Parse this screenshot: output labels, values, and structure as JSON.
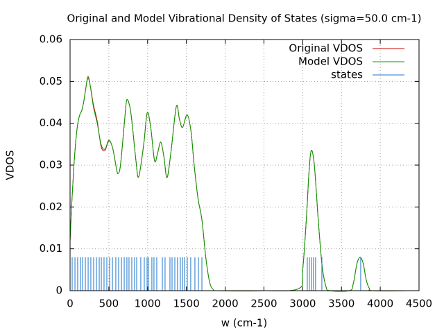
{
  "chart_data": {
    "type": "line",
    "title": "Original and Model Vibrational Density of States (sigma=50.0 cm-1)",
    "x_label": "w (cm-1)",
    "y_label": "VDOS",
    "xlim": [
      0,
      4500
    ],
    "ylim": [
      0,
      0.06
    ],
    "xticks": [
      0,
      500,
      1000,
      1500,
      2000,
      2500,
      3000,
      3500,
      4000,
      4500
    ],
    "yticks": [
      0,
      0.01,
      0.02,
      0.03,
      0.04,
      0.05,
      0.06
    ],
    "grid": true,
    "legend": "top-right",
    "series": [
      {
        "name": "Original VDOS",
        "color": "#cc0000",
        "style": "lines",
        "x": [
          0,
          25,
          50,
          75,
          100,
          125,
          150,
          175,
          200,
          230,
          260,
          300,
          350,
          400,
          450,
          500,
          550,
          600,
          620,
          650,
          700,
          730,
          770,
          800,
          850,
          885,
          950,
          995,
          1040,
          1090,
          1130,
          1170,
          1210,
          1250,
          1300,
          1370,
          1410,
          1450,
          1510,
          1560,
          1600,
          1650,
          1700,
          1750,
          1800,
          1850,
          1900,
          2500,
          2950,
          3000,
          3050,
          3080,
          3110,
          3150,
          3200,
          3250,
          3300,
          3350,
          3600,
          3650,
          3700,
          3740,
          3780,
          3820,
          3860,
          3900,
          4350
        ],
        "values": [
          0.012,
          0.022,
          0.03,
          0.036,
          0.04,
          0.042,
          0.043,
          0.045,
          0.048,
          0.0508,
          0.049,
          0.0445,
          0.0405,
          0.0345,
          0.0335,
          0.0358,
          0.034,
          0.029,
          0.028,
          0.03,
          0.04,
          0.0455,
          0.044,
          0.04,
          0.031,
          0.0272,
          0.035,
          0.0425,
          0.039,
          0.031,
          0.033,
          0.0355,
          0.032,
          0.027,
          0.033,
          0.044,
          0.041,
          0.039,
          0.042,
          0.038,
          0.03,
          0.022,
          0.017,
          0.008,
          0.002,
          0.0002,
          0,
          0,
          0.0005,
          0.005,
          0.018,
          0.028,
          0.0335,
          0.03,
          0.017,
          0.006,
          0.001,
          0,
          0,
          0.0015,
          0.0065,
          0.008,
          0.0065,
          0.0025,
          0.0005,
          0,
          0
        ]
      },
      {
        "name": "Model VDOS",
        "color": "#00a000",
        "style": "lines",
        "x": [
          0,
          25,
          50,
          75,
          100,
          125,
          150,
          175,
          200,
          230,
          260,
          300,
          350,
          400,
          450,
          500,
          550,
          600,
          620,
          650,
          700,
          730,
          770,
          800,
          850,
          885,
          950,
          995,
          1040,
          1090,
          1130,
          1170,
          1210,
          1250,
          1300,
          1370,
          1410,
          1450,
          1510,
          1560,
          1600,
          1650,
          1700,
          1750,
          1800,
          1850,
          1900,
          2500,
          2950,
          3000,
          3050,
          3080,
          3110,
          3150,
          3200,
          3250,
          3300,
          3350,
          3600,
          3650,
          3700,
          3740,
          3780,
          3820,
          3860,
          3900,
          4350
        ],
        "values": [
          0.012,
          0.022,
          0.03,
          0.036,
          0.04,
          0.042,
          0.043,
          0.045,
          0.048,
          0.0512,
          0.049,
          0.044,
          0.04,
          0.035,
          0.0338,
          0.036,
          0.034,
          0.029,
          0.028,
          0.03,
          0.04,
          0.0455,
          0.044,
          0.04,
          0.031,
          0.0272,
          0.035,
          0.0425,
          0.039,
          0.031,
          0.033,
          0.0355,
          0.032,
          0.027,
          0.033,
          0.044,
          0.041,
          0.039,
          0.042,
          0.038,
          0.03,
          0.022,
          0.017,
          0.008,
          0.002,
          0.0002,
          0,
          0,
          0.0005,
          0.005,
          0.018,
          0.028,
          0.0335,
          0.03,
          0.017,
          0.006,
          0.001,
          0,
          0,
          0.0015,
          0.0065,
          0.008,
          0.0065,
          0.0025,
          0.0005,
          0,
          0
        ]
      },
      {
        "name": "states",
        "color": "#1874cd",
        "style": "impulses",
        "x": [
          27,
          63,
          98,
          134,
          161,
          197,
          233,
          268,
          304,
          340,
          376,
          403,
          438,
          474,
          510,
          546,
          590,
          626,
          662,
          698,
          733,
          760,
          796,
          832,
          859,
          912,
          957,
          993,
          1011,
          1055,
          1082,
          1118,
          1190,
          1225,
          1288,
          1315,
          1351,
          1386,
          1422,
          1449,
          1476,
          1512,
          1556,
          1610,
          1655,
          1700,
          3059,
          3086,
          3113,
          3140,
          3166,
          3247,
          3748
        ],
        "values": [
          0.008,
          0.008,
          0.008,
          0.008,
          0.008,
          0.008,
          0.008,
          0.008,
          0.008,
          0.008,
          0.008,
          0.008,
          0.008,
          0.008,
          0.008,
          0.008,
          0.008,
          0.008,
          0.008,
          0.008,
          0.008,
          0.008,
          0.008,
          0.008,
          0.008,
          0.008,
          0.008,
          0.008,
          0.008,
          0.008,
          0.008,
          0.008,
          0.008,
          0.008,
          0.008,
          0.008,
          0.008,
          0.008,
          0.008,
          0.008,
          0.008,
          0.008,
          0.008,
          0.008,
          0.008,
          0.008,
          0.008,
          0.008,
          0.008,
          0.008,
          0.008,
          0.008,
          0.008
        ]
      }
    ]
  }
}
